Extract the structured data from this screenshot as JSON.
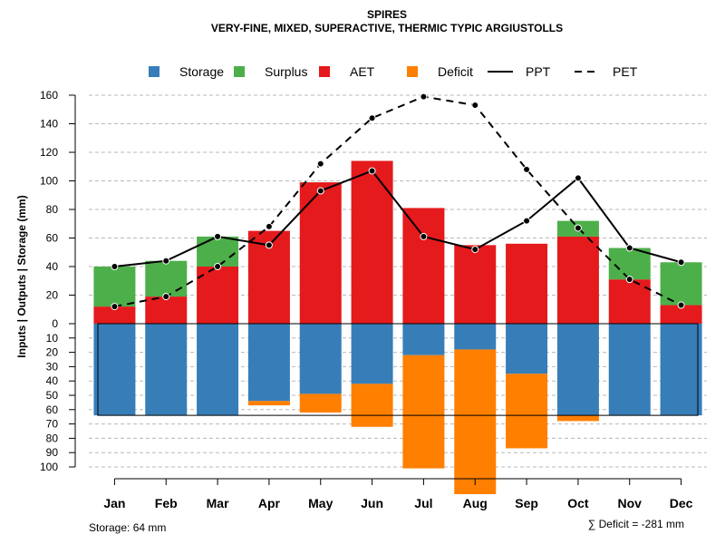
{
  "chart_data": {
    "type": "bar",
    "title": "SPIRES",
    "subtitle": "VERY-FINE, MIXED, SUPERACTIVE, THERMIC TYPIC ARGIUSTOLLS",
    "ylabel": "Inputs | Outputs | Storage     (mm)",
    "upper_ylim": [
      0,
      160
    ],
    "upper_ticks": [
      "0",
      "20",
      "40",
      "60",
      "80",
      "100",
      "120",
      "140",
      "160"
    ],
    "lower_ylim": [
      0,
      100
    ],
    "lower_ticks": [
      "10",
      "20",
      "30",
      "40",
      "50",
      "60",
      "70",
      "80",
      "90",
      "100"
    ],
    "categories": [
      "Jan",
      "Feb",
      "Mar",
      "Apr",
      "May",
      "Jun",
      "Jul",
      "Aug",
      "Sep",
      "Oct",
      "Nov",
      "Dec"
    ],
    "legend": [
      {
        "name": "Storage",
        "kind": "box",
        "color": "#377EB8"
      },
      {
        "name": "Surplus",
        "kind": "box",
        "color": "#4DAF4A"
      },
      {
        "name": "AET",
        "kind": "box",
        "color": "#E41A1C"
      },
      {
        "name": "Deficit",
        "kind": "box",
        "color": "#FF7F00"
      },
      {
        "name": "PPT",
        "kind": "solid"
      },
      {
        "name": "PET",
        "kind": "dashed"
      }
    ],
    "series": {
      "AET": [
        12,
        19,
        40,
        65,
        99,
        114,
        81,
        55,
        56,
        61,
        31,
        13
      ],
      "Surplus": [
        28,
        25,
        21,
        0,
        0,
        0,
        0,
        0,
        0,
        11,
        22,
        30
      ],
      "Storage": [
        64,
        64,
        64,
        54,
        49,
        42,
        22,
        18,
        35,
        64,
        64,
        64
      ],
      "Deficit": [
        0,
        0,
        0,
        3,
        13,
        30,
        79,
        101,
        52,
        4,
        0,
        0
      ],
      "PPT": [
        40,
        44,
        61,
        55,
        93,
        107,
        61,
        52,
        72,
        102,
        53,
        43
      ],
      "PET": [
        12,
        19,
        40,
        68,
        112,
        144,
        159,
        153,
        108,
        67,
        31,
        13
      ]
    },
    "storage_capacity": 64,
    "footnote_left": "Storage: 64 mm",
    "footnote_right": "∑ Deficit = -281 mm"
  }
}
